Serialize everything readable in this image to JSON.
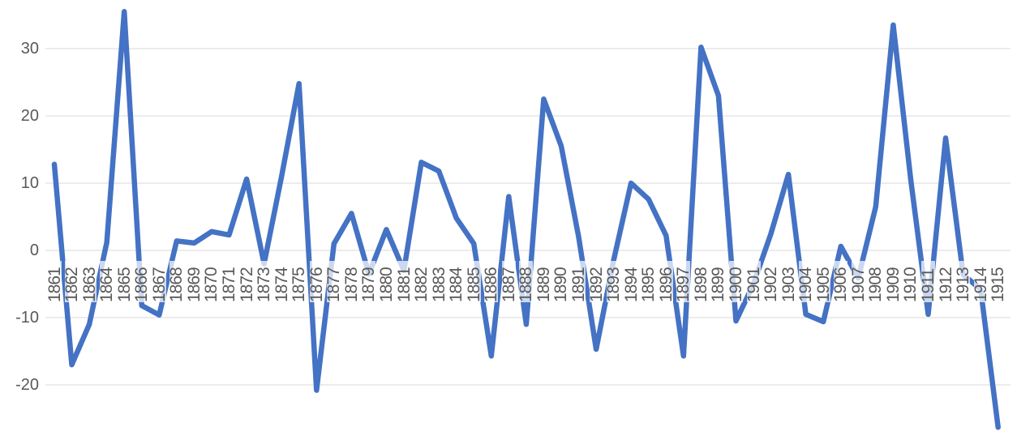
{
  "chart_data": {
    "type": "line",
    "title": "",
    "xlabel": "",
    "ylabel": "",
    "series_name": "",
    "legend": false,
    "grid": true,
    "x_tick_rotation": -90,
    "yticks": [
      30,
      20,
      10,
      0,
      -10,
      -20
    ],
    "ylim": [
      -27,
      36
    ],
    "categories": [
      "1861",
      "1862",
      "1863",
      "1864",
      "1865",
      "1866",
      "1867",
      "1868",
      "1869",
      "1870",
      "1871",
      "1872",
      "1873",
      "1874",
      "1875",
      "1876",
      "1877",
      "1878",
      "1879",
      "1880",
      "1881",
      "1882",
      "1883",
      "1884",
      "1885",
      "1886",
      "1887",
      "1888",
      "1889",
      "1890",
      "1891",
      "1892",
      "1893",
      "1894",
      "1895",
      "1896",
      "1897",
      "1898",
      "1899",
      "1900",
      "1901",
      "1902",
      "1903",
      "1904",
      "1905",
      "1906",
      "1907",
      "1908",
      "1909",
      "1910",
      "1911",
      "1912",
      "1913",
      "1914",
      "1915"
    ],
    "values": [
      12.8,
      -17,
      -11,
      1.2,
      35.5,
      -8.2,
      -9.6,
      1.4,
      1.1,
      2.8,
      2.3,
      10.6,
      -2,
      11,
      24.8,
      -20.8,
      1,
      5.5,
      -3.5,
      3.1,
      -3,
      13.1,
      11.8,
      4.8,
      1,
      -15.7,
      8,
      -11,
      22.5,
      15.5,
      2,
      -14.7,
      -1.5,
      10,
      7.6,
      2.2,
      -15.7,
      30.2,
      23,
      -10.5,
      -5,
      2.5,
      11.3,
      -9.5,
      -10.6,
      0.6,
      -4.1,
      6.5,
      33.5,
      10.5,
      -9.5,
      16.7,
      -3.6,
      -5.8,
      -26.3
    ],
    "colors": {
      "line": "#4472C4",
      "gridline": "#D9D9D9",
      "tick_label": "#595959",
      "background": "#FFFFFF"
    }
  }
}
